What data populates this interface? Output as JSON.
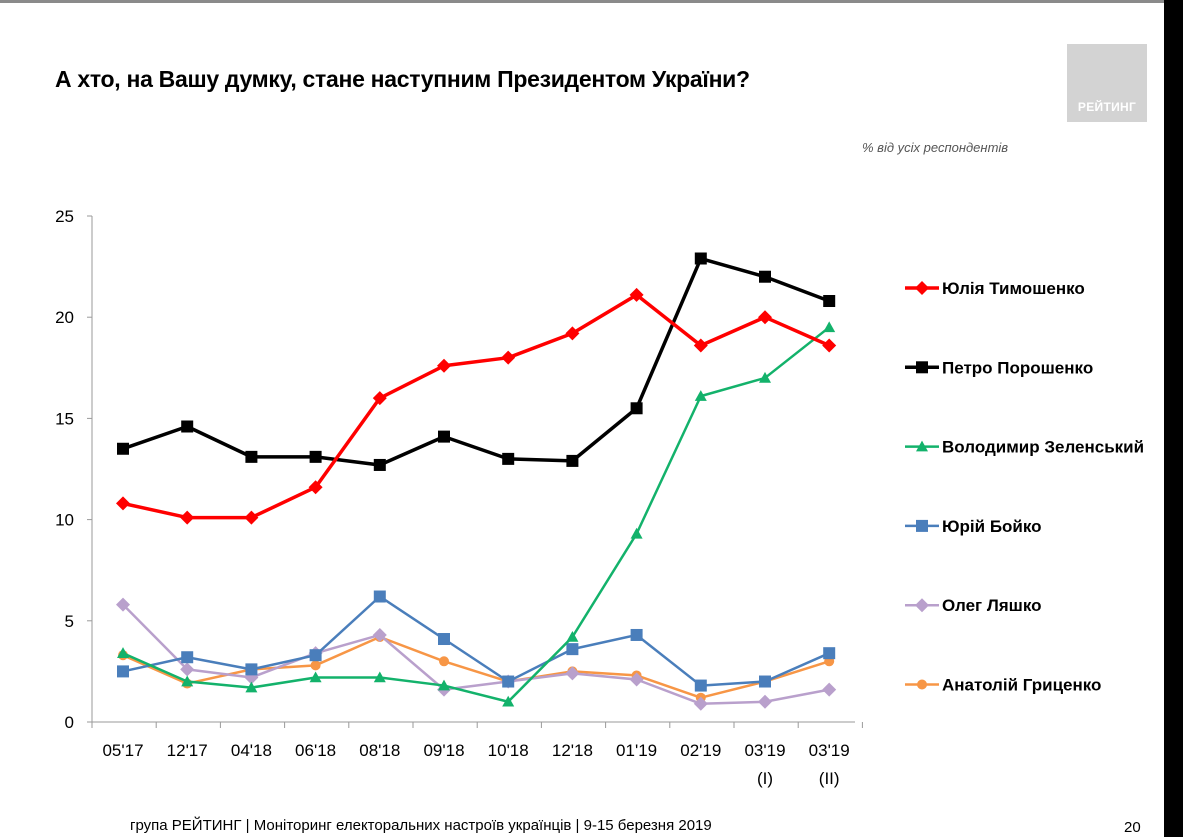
{
  "slide": {
    "title": "А хто, на Вашу думку, стане наступним Президентом України?",
    "subtitle": "% від усіх респондентів",
    "logo_text": "РЕЙТИНГ",
    "footer": "група РЕЙТИНГ | Моніторинг електоральних настроїв українців  | 9-15 березня 2019",
    "page_number": "20"
  },
  "chart_data": {
    "type": "line",
    "categories": [
      "05'17",
      "12'17",
      "04'18",
      "06'18",
      "08'18",
      "09'18",
      "10'18",
      "12'18",
      "01'19",
      "02'19",
      "03'19",
      "03'19"
    ],
    "category_sublabels": [
      "",
      "",
      "",
      "",
      "",
      "",
      "",
      "",
      "",
      "",
      "(I)",
      "(II)"
    ],
    "ylim": [
      0,
      25
    ],
    "yticks": [
      0,
      5,
      10,
      15,
      20,
      25
    ],
    "legend_position": "right",
    "grid": false,
    "series": [
      {
        "name": "Юлія Тимошенко",
        "color": "#ff0000",
        "marker": "diamond",
        "values": [
          10.8,
          10.1,
          10.1,
          11.6,
          16.0,
          17.6,
          18.0,
          19.2,
          21.1,
          18.6,
          20.0,
          18.6
        ]
      },
      {
        "name": "Петро Порошенко",
        "color": "#000000",
        "marker": "square",
        "values": [
          13.5,
          14.6,
          13.1,
          13.1,
          12.7,
          14.1,
          13.0,
          12.9,
          15.5,
          22.9,
          22.0,
          20.8
        ]
      },
      {
        "name": "Володимир Зеленський",
        "color": "#13b26b",
        "marker": "triangle",
        "values": [
          3.4,
          2.0,
          1.7,
          2.2,
          2.2,
          1.8,
          1.0,
          4.2,
          9.3,
          16.1,
          17.0,
          19.5
        ]
      },
      {
        "name": "Юрій Бойко",
        "color": "#4a7ebb",
        "marker": "square",
        "values": [
          2.5,
          3.2,
          2.6,
          3.3,
          6.2,
          4.1,
          2.0,
          3.6,
          4.3,
          1.8,
          2.0,
          3.4
        ]
      },
      {
        "name": "Олег Ляшко",
        "color": "#b9a0cc",
        "marker": "diamond",
        "values": [
          5.8,
          2.6,
          2.2,
          3.4,
          4.3,
          1.6,
          2.0,
          2.4,
          2.1,
          0.9,
          1.0,
          1.6
        ]
      },
      {
        "name": "Анатолій Гриценко",
        "color": "#f79646",
        "marker": "circle",
        "values": [
          3.3,
          1.9,
          2.6,
          2.8,
          4.2,
          3.0,
          2.0,
          2.5,
          2.3,
          1.2,
          2.0,
          3.0
        ]
      }
    ]
  }
}
